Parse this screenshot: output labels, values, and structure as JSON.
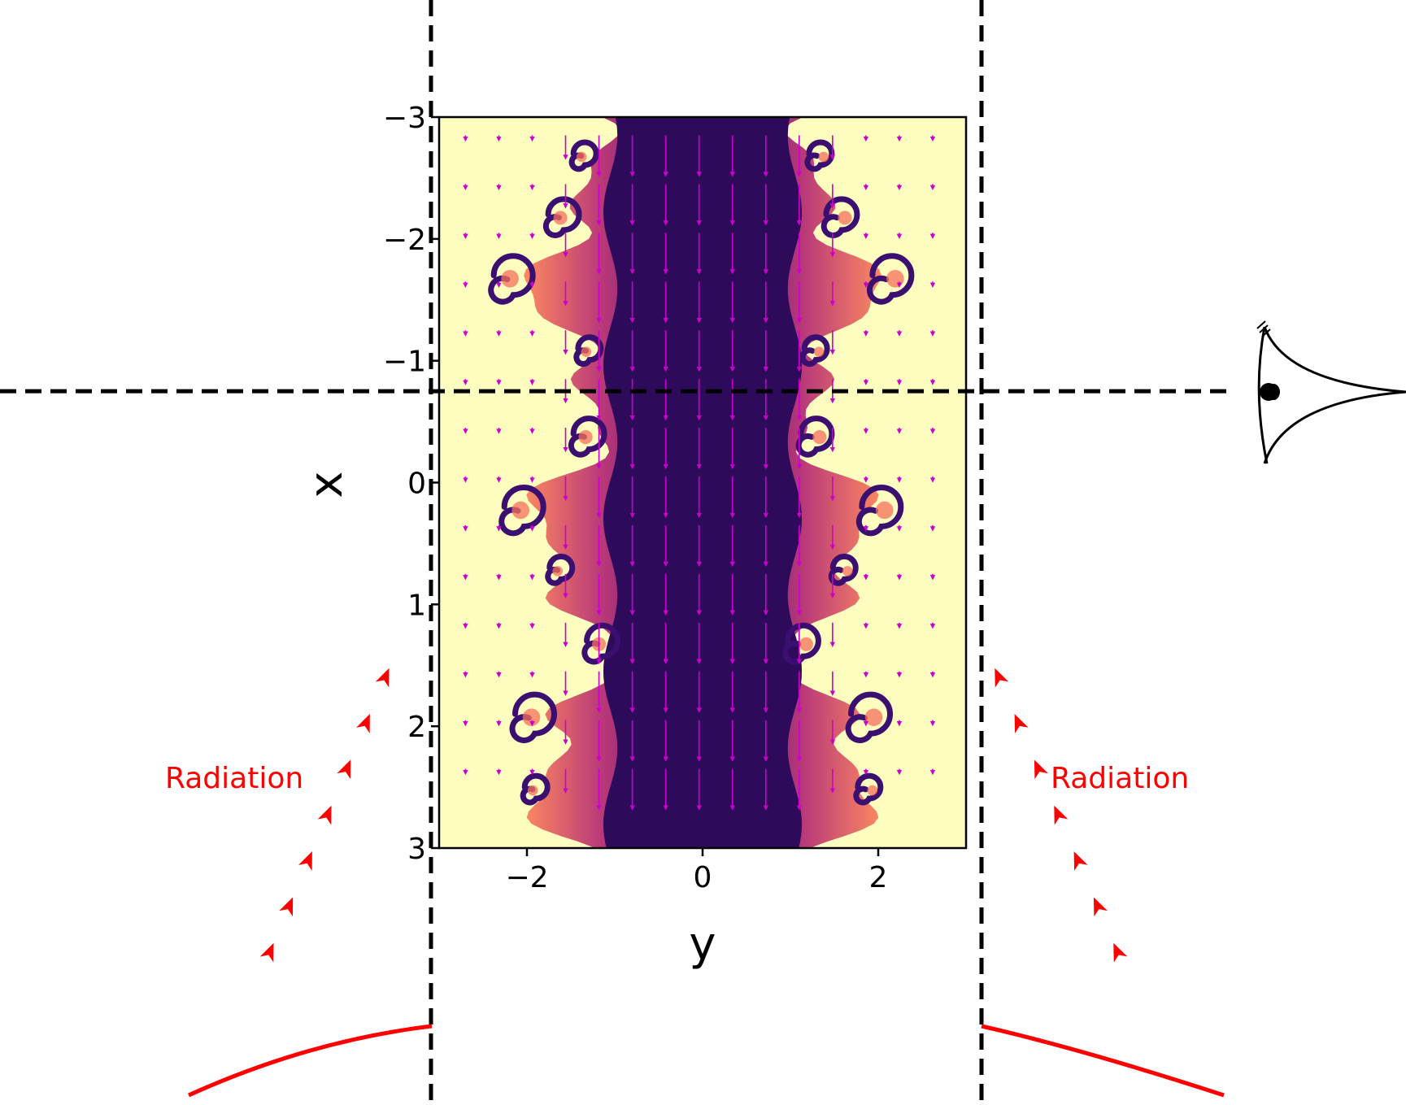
{
  "chart_data": {
    "type": "heatmap",
    "xlabel": "y",
    "ylabel": "x",
    "x_range": [
      -3,
      3
    ],
    "y_range": [
      3,
      -3
    ],
    "x_ticks": [
      {
        "value": -2,
        "label": "−2"
      },
      {
        "value": 0,
        "label": "0"
      },
      {
        "value": 2,
        "label": "2"
      }
    ],
    "y_ticks": [
      {
        "value": -3,
        "label": "−3"
      },
      {
        "value": -2,
        "label": "−2"
      },
      {
        "value": -1,
        "label": "−1"
      },
      {
        "value": 0,
        "label": "0"
      },
      {
        "value": 1,
        "label": "1"
      },
      {
        "value": 2,
        "label": "2"
      },
      {
        "value": 3,
        "label": "3"
      }
    ],
    "colormap": "magma",
    "jet_half_width": 1.5,
    "velocity_arrows": {
      "color": "#cc00cc",
      "direction": "+x"
    },
    "line_of_sight_x": -0.75
  },
  "annotations": {
    "radiation_left": "Radiation",
    "radiation_right": "Radiation"
  },
  "colors": {
    "background_fill": "#fcfdbf",
    "jet_core": "#3b0f70",
    "jet_edge": "#fc8961",
    "arrow": "#cc00cc",
    "radiation": "#ff0000",
    "guide_lines": "#000000"
  },
  "icons": {
    "observer": "eye-icon"
  }
}
